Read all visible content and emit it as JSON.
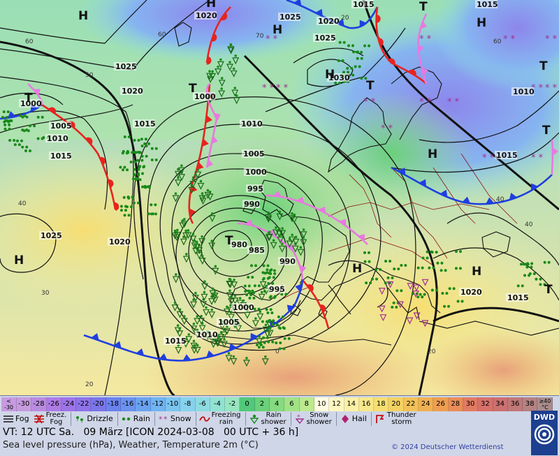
{
  "map": {
    "isobars": [
      {
        "label": "995"
      },
      {
        "label": "990"
      },
      {
        "label": "985"
      },
      {
        "label": "980"
      },
      {
        "label": "1000"
      },
      {
        "label": "1005"
      },
      {
        "label": "1010"
      },
      {
        "label": "1015"
      },
      {
        "label": "1020"
      },
      {
        "label": "1025"
      },
      {
        "label": "1030"
      }
    ],
    "pressure_labels": [
      "1020",
      "1025",
      "1015",
      "1015",
      "1020",
      "1025",
      "1030",
      "1025",
      "1020",
      "1015",
      "1000",
      "1005",
      "1010",
      "1015",
      "1000",
      "1010",
      "1005",
      "1000",
      "995",
      "990",
      "985",
      "990",
      "980",
      "995",
      "1000",
      "1005",
      "1010",
      "1015",
      "1025",
      "1020",
      "1010",
      "1015",
      "1020",
      "1015"
    ],
    "centers": [
      {
        "type": "H"
      },
      {
        "type": "H"
      },
      {
        "type": "H"
      },
      {
        "type": "T"
      },
      {
        "type": "T"
      },
      {
        "type": "T"
      },
      {
        "type": "T"
      },
      {
        "type": "H"
      },
      {
        "type": "T"
      },
      {
        "type": "T"
      },
      {
        "type": "H"
      },
      {
        "type": "H"
      },
      {
        "type": "H"
      },
      {
        "type": "H"
      },
      {
        "type": "H"
      },
      {
        "type": "T"
      },
      {
        "type": "T"
      }
    ],
    "temp_labels": [
      "60",
      "60",
      "50",
      "70",
      "60",
      "40",
      "30",
      "20",
      "40",
      "20",
      "0",
      "20",
      "40"
    ],
    "colors": {
      "warm_front": "#e8231f",
      "cold_front": "#1f3fe0",
      "occlusion": "#e879e0",
      "isobar": "#111111",
      "land_border": "#8b1010",
      "coast": "#111111"
    }
  },
  "scale": {
    "cells": [
      {
        "label": "<\n-30",
        "color": "#c69be0"
      },
      {
        "label": "-30",
        "color": "#c69be0"
      },
      {
        "label": "-28",
        "color": "#b98be0"
      },
      {
        "label": "-26",
        "color": "#ad7be6"
      },
      {
        "label": "-24",
        "color": "#9d74e8"
      },
      {
        "label": "-22",
        "color": "#8d73ea"
      },
      {
        "label": "-20",
        "color": "#7a75ea"
      },
      {
        "label": "-18",
        "color": "#6a82ec"
      },
      {
        "label": "-16",
        "color": "#6a92ee"
      },
      {
        "label": "-14",
        "color": "#6aa2f0"
      },
      {
        "label": "-12",
        "color": "#70b4f0"
      },
      {
        "label": "-10",
        "color": "#7ac4f0"
      },
      {
        "label": "-8",
        "color": "#86d2ee"
      },
      {
        "label": "-6",
        "color": "#8cdce2"
      },
      {
        "label": "-4",
        "color": "#92e2d2"
      },
      {
        "label": "-2",
        "color": "#98e6c0"
      },
      {
        "label": "0",
        "color": "#52c87a"
      },
      {
        "label": "2",
        "color": "#6ad07a"
      },
      {
        "label": "4",
        "color": "#86da80"
      },
      {
        "label": "6",
        "color": "#a2e286"
      },
      {
        "label": "8",
        "color": "#bcea8e"
      },
      {
        "label": "10",
        "color": "#fffce2"
      },
      {
        "label": "12",
        "color": "#fdf6c0"
      },
      {
        "label": "14",
        "color": "#fbf0a6"
      },
      {
        "label": "16",
        "color": "#f8e88a"
      },
      {
        "label": "18",
        "color": "#f6de72"
      },
      {
        "label": "20",
        "color": "#f4d262"
      },
      {
        "label": "22",
        "color": "#f2c258"
      },
      {
        "label": "24",
        "color": "#f0b052"
      },
      {
        "label": "26",
        "color": "#ee9e52"
      },
      {
        "label": "28",
        "color": "#ea8c58"
      },
      {
        "label": "30",
        "color": "#e27a62"
      },
      {
        "label": "32",
        "color": "#d8706a"
      },
      {
        "label": "34",
        "color": "#cc7070"
      },
      {
        "label": "36",
        "color": "#c07878"
      },
      {
        "label": "38",
        "color": "#b48282"
      },
      {
        "label": "≥40\n°C",
        "color": "#a88c8c"
      }
    ]
  },
  "legend": [
    {
      "label": "Fog",
      "icon": "fog-icon"
    },
    {
      "label": "Freez.\nFog",
      "icon": "freezing-fog-icon"
    },
    {
      "label": "Drizzle",
      "icon": "drizzle-icon"
    },
    {
      "label": "Rain",
      "icon": "rain-icon"
    },
    {
      "label": "Snow",
      "icon": "snow-icon"
    },
    {
      "label": "Freezing\nrain",
      "icon": "freezing-rain-icon"
    },
    {
      "label": "Rain\nshower",
      "icon": "rain-shower-icon"
    },
    {
      "label": "Snow\nshower",
      "icon": "snow-shower-icon"
    },
    {
      "label": "Hail",
      "icon": "hail-icon"
    },
    {
      "label": "Thunder\nstorm",
      "icon": "thunderstorm-icon"
    }
  ],
  "info": {
    "valid_time": "VT: 12 UTC Sa.   09 März [ICON 2024-03-08   00 UTC + 36 h]",
    "subtitle": "Sea level pressure (hPa), Weather, Temperature 2m (°C)",
    "copyright": "© 2024 Deutscher Wetterdienst",
    "logo_text": "DWD"
  }
}
